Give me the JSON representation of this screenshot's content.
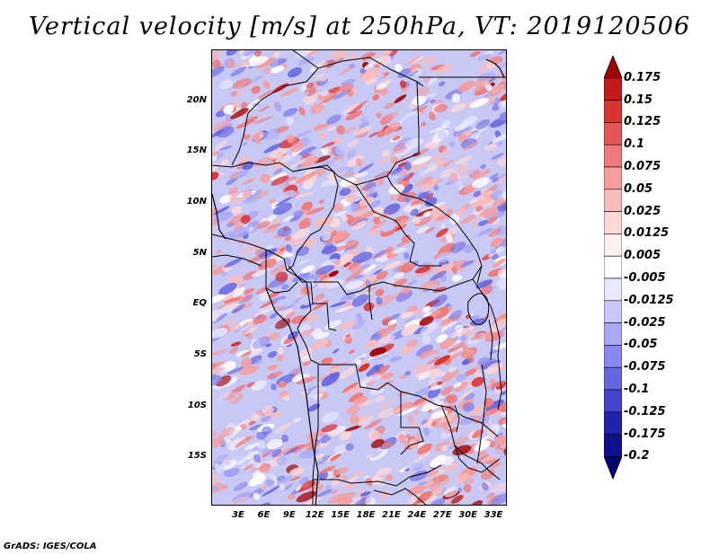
{
  "title": "Vertical velocity [m/s] at 250hPa, VT: 2019120506",
  "footer": "GrADS: IGES/COLA",
  "lat_labels": [
    "20N",
    "15N",
    "10N",
    "5N",
    "EQ",
    "5S",
    "10S",
    "15S"
  ],
  "lon_labels": [
    "3E",
    "6E",
    "9E",
    "12E",
    "15E",
    "18E",
    "21E",
    "24E",
    "27E",
    "30E",
    "33E"
  ],
  "colorbar": {
    "levels": [
      "0.175",
      "0.15",
      "0.125",
      "0.1",
      "0.075",
      "0.05",
      "0.025",
      "0.0125",
      "0.005",
      "-0.005",
      "-0.0125",
      "-0.025",
      "-0.05",
      "-0.075",
      "-0.1",
      "-0.125",
      "-0.175",
      "-0.2"
    ],
    "colors": [
      "#a00000",
      "#c31a1a",
      "#d93434",
      "#e65454",
      "#ef7a7a",
      "#f59c9c",
      "#f9bcbc",
      "#fcd8d8",
      "#fff0f0",
      "#ffffff",
      "#e8e8ff",
      "#c8c8fb",
      "#a8a8f5",
      "#8888ee",
      "#6666e0",
      "#4444cc",
      "#2222b0",
      "#0f0f90",
      "#000070"
    ]
  }
}
